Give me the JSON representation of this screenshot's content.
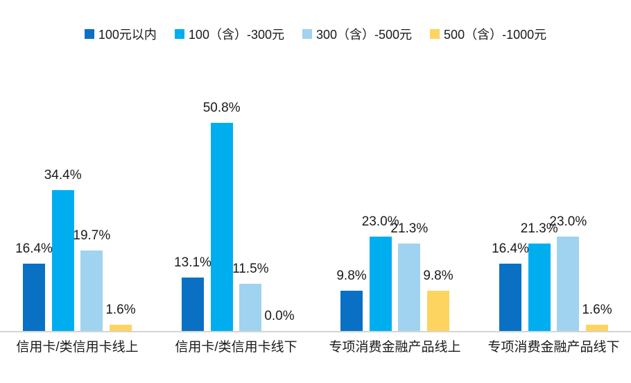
{
  "legend": {
    "items": [
      {
        "label": "100元以内",
        "color": "#0A70C4"
      },
      {
        "label": "100（含）-300元",
        "color": "#00AEF0"
      },
      {
        "label": "300（含）-500元",
        "color": "#A0D3EF"
      },
      {
        "label": "500（含）-1000元",
        "color": "#FCD45F"
      }
    ]
  },
  "chart_data": {
    "type": "bar",
    "categories": [
      "信用卡/类信用卡线上",
      "信用卡/类信用卡线下",
      "专项消费金融产品线上",
      "专项消费金融产品线下"
    ],
    "series": [
      {
        "name": "100元以内",
        "color": "#0A70C4",
        "values": [
          16.4,
          13.1,
          9.8,
          16.4
        ]
      },
      {
        "name": "100（含）-300元",
        "color": "#00AEF0",
        "values": [
          34.4,
          50.8,
          23.0,
          21.3
        ]
      },
      {
        "name": "300（含）-500元",
        "color": "#A0D3EF",
        "values": [
          19.7,
          11.5,
          21.3,
          23.0
        ]
      },
      {
        "name": "500（含）-1000元",
        "color": "#FCD45F",
        "values": [
          1.6,
          0.0,
          9.8,
          1.6
        ]
      }
    ],
    "value_labels": [
      [
        "16.4%",
        "34.4%",
        "19.7%",
        "1.6%"
      ],
      [
        "13.1%",
        "50.8%",
        "11.5%",
        "0.0%"
      ],
      [
        "9.8%",
        "23.0%",
        "21.3%",
        "9.8%"
      ],
      [
        "16.4%",
        "21.3%",
        "23.0%",
        "1.6%"
      ]
    ],
    "ylim": [
      0,
      55
    ],
    "grid": false,
    "legend_position": "top"
  },
  "style": {
    "axis_line_color": "#D4D4D4",
    "text_color": "#1A1A1A",
    "background": "#FFFFFF"
  }
}
